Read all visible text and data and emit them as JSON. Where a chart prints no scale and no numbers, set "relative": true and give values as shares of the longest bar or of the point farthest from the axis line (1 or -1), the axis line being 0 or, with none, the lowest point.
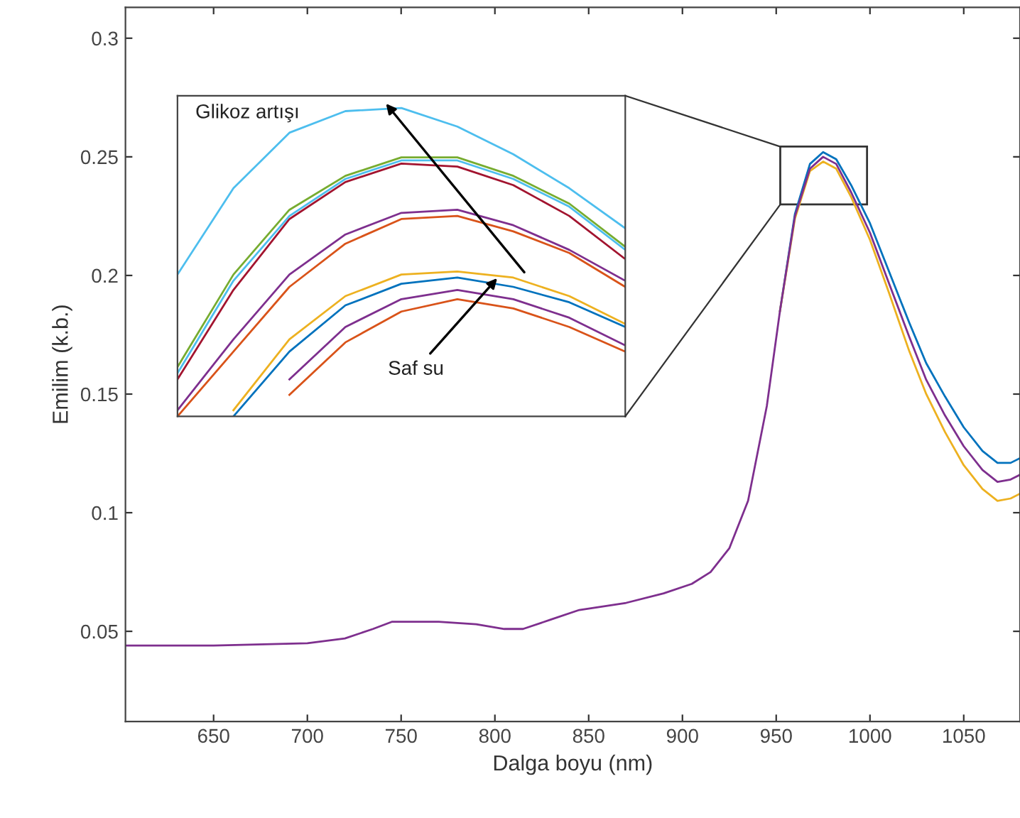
{
  "chart_data": [
    {
      "type": "line",
      "xlabel": "Dalga boyu (nm)",
      "ylabel": "Emilim (k.b.)",
      "xlim": [
        603,
        1080
      ],
      "ylim": [
        0.012,
        0.313
      ],
      "xticks": [
        650,
        700,
        750,
        800,
        850,
        900,
        950,
        1000,
        1050
      ],
      "yticks": [
        0.05,
        0.1,
        0.15,
        0.2,
        0.25,
        0.3
      ],
      "grid": false,
      "legend": false,
      "marker": "none",
      "line_style": "solid",
      "series": [
        {
          "color": "#0072bd",
          "x": [
            952,
            960,
            968,
            975,
            982,
            990,
            1000,
            1010,
            1021,
            1030,
            1040,
            1050,
            1060,
            1068,
            1075,
            1080
          ],
          "values": [
            0.185,
            0.226,
            0.247,
            0.252,
            0.249,
            0.238,
            0.222,
            0.202,
            0.18,
            0.163,
            0.149,
            0.136,
            0.126,
            0.121,
            0.121,
            0.123
          ]
        },
        {
          "color": "#edb120",
          "x": [
            952,
            960,
            968,
            975,
            982,
            990,
            1000,
            1010,
            1021,
            1030,
            1040,
            1050,
            1060,
            1068,
            1075,
            1080
          ],
          "values": [
            0.185,
            0.224,
            0.244,
            0.248,
            0.245,
            0.233,
            0.215,
            0.193,
            0.168,
            0.15,
            0.134,
            0.12,
            0.11,
            0.105,
            0.106,
            0.108
          ]
        },
        {
          "color": "#7e2f8e",
          "x": [
            603,
            650,
            700,
            720,
            735,
            745,
            770,
            790,
            805,
            815,
            830,
            845,
            870,
            890,
            905,
            915,
            925,
            935,
            945,
            952,
            960,
            968,
            975,
            982,
            990,
            1000,
            1010,
            1021,
            1030,
            1040,
            1050,
            1060,
            1068,
            1075,
            1080
          ],
          "values": [
            0.044,
            0.044,
            0.045,
            0.047,
            0.051,
            0.054,
            0.054,
            0.053,
            0.051,
            0.051,
            0.055,
            0.059,
            0.062,
            0.066,
            0.07,
            0.075,
            0.085,
            0.105,
            0.145,
            0.185,
            0.225,
            0.245,
            0.25,
            0.247,
            0.235,
            0.218,
            0.197,
            0.174,
            0.156,
            0.141,
            0.128,
            0.118,
            0.113,
            0.114,
            0.116
          ]
        }
      ]
    },
    {
      "type": "line",
      "relative": true,
      "grid": false,
      "legend": false,
      "marker": "none",
      "line_style": "solid",
      "categories": [
        null,
        null,
        null,
        null,
        null,
        null,
        null,
        null,
        null
      ],
      "annotations": [
        "Glikoz artışı",
        "Saf su"
      ],
      "series": [
        {
          "color": "#4dbeee",
          "values": [
            0.46,
            0.74,
            0.92,
            0.99,
            1.0,
            0.94,
            0.85,
            0.74,
            0.61
          ]
        },
        {
          "color": "#77ac30",
          "values": [
            0.16,
            0.46,
            0.67,
            0.78,
            0.84,
            0.84,
            0.78,
            0.69,
            0.55
          ]
        },
        {
          "color": "#a2142f",
          "values": [
            0.12,
            0.41,
            0.64,
            0.76,
            0.82,
            0.81,
            0.75,
            0.65,
            0.51
          ]
        },
        {
          "color": "#4dbeee",
          "values": [
            0.14,
            0.44,
            0.65,
            0.77,
            0.83,
            0.83,
            0.77,
            0.68,
            0.54
          ]
        },
        {
          "color": "#7e2f8e",
          "values": [
            0.02,
            0.25,
            0.46,
            0.59,
            0.66,
            0.67,
            0.62,
            0.54,
            0.44
          ]
        },
        {
          "color": "#d95319",
          "values": [
            0.0,
            0.21,
            0.42,
            0.56,
            0.64,
            0.65,
            0.6,
            0.53,
            0.42
          ]
        },
        {
          "color": "#edb120",
          "values": [
            null,
            0.02,
            0.25,
            0.39,
            0.46,
            0.47,
            0.45,
            0.39,
            0.3
          ]
        },
        {
          "color": "#0072bd",
          "values": [
            null,
            0.0,
            0.21,
            0.36,
            0.43,
            0.45,
            0.42,
            0.37,
            0.29
          ]
        },
        {
          "color": "#7e2f8e",
          "values": [
            null,
            null,
            0.12,
            0.29,
            0.38,
            0.41,
            0.38,
            0.32,
            0.23
          ]
        },
        {
          "color": "#d95319",
          "values": [
            null,
            null,
            0.07,
            0.24,
            0.34,
            0.38,
            0.35,
            0.29,
            0.21
          ]
        }
      ]
    }
  ]
}
